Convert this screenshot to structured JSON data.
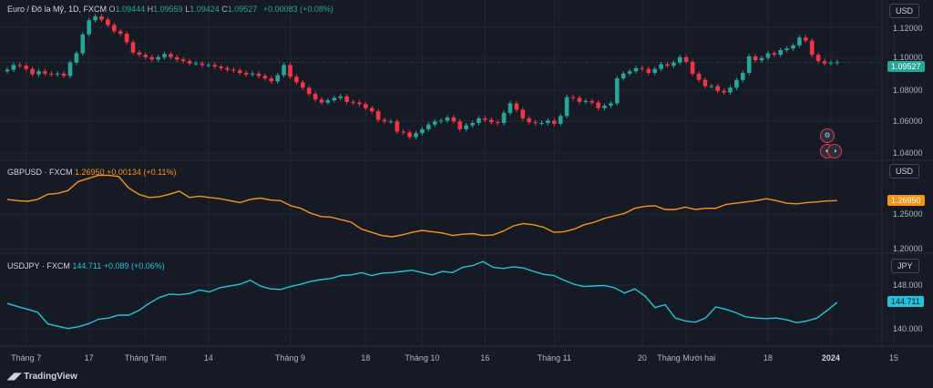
{
  "main_legend": {
    "symbol": "Euro / Đô la Mỹ, 1D, FXCM",
    "o_label": "O",
    "o": "1.09444",
    "h_label": "H",
    "h": "1.09559",
    "l_label": "L",
    "l": "1.09424",
    "c_label": "C",
    "c": "1.09527",
    "change": "+0.00083 (+0.08%)"
  },
  "gbp_legend": {
    "symbol": "GBPUSD · FXCM",
    "value": "1.26950",
    "change": "+0.00134 (+0.11%)"
  },
  "jpy_legend": {
    "symbol": "USDJPY · FXCM",
    "value": "144.711",
    "change": "+0.089 (+0.06%)"
  },
  "currency_badges": {
    "main": "USD",
    "gbp": "USD",
    "jpy": "JPY"
  },
  "price_tags": {
    "main": "1.09527",
    "gbp": "1.26950",
    "jpy": "144.711"
  },
  "yaxis": {
    "main": [
      "1.12000",
      "1.10000",
      "1.08000",
      "1.06000",
      "1.04000"
    ],
    "gbp": [
      "1.25000",
      "1.20000"
    ],
    "jpy": [
      "148.000",
      "140.000"
    ]
  },
  "xaxis": [
    {
      "t": "Tháng 7",
      "i": 3,
      "bold": false
    },
    {
      "t": "17",
      "i": 13,
      "bold": false
    },
    {
      "t": "Tháng Tám",
      "i": 22,
      "bold": false
    },
    {
      "t": "14",
      "i": 32,
      "bold": false
    },
    {
      "t": "Tháng 9",
      "i": 45,
      "bold": false
    },
    {
      "t": "18",
      "i": 57,
      "bold": false
    },
    {
      "t": "Tháng 10",
      "i": 66,
      "bold": false
    },
    {
      "t": "16",
      "i": 76,
      "bold": false
    },
    {
      "t": "Tháng 11",
      "i": 87,
      "bold": false
    },
    {
      "t": "20",
      "i": 101,
      "bold": false
    },
    {
      "t": "Tháng Mười hai",
      "i": 108,
      "bold": false
    },
    {
      "t": "18",
      "i": 121,
      "bold": false
    },
    {
      "t": "2024",
      "i": 131,
      "bold": true
    },
    {
      "t": "15",
      "i": 141,
      "bold": false
    }
  ],
  "branding": {
    "logo_text": "TradingView"
  },
  "colors": {
    "up": "#26a69a",
    "down": "#f23645",
    "gbp_line": "#f7931a",
    "jpy_line": "#22c3dd",
    "bg": "#161a25",
    "grid": "#232732"
  },
  "chart_data": [
    {
      "type": "candlestick",
      "title": "Euro / Đô la Mỹ, 1D, FXCM",
      "ylim": [
        1.035,
        1.128
      ],
      "close": [
        1.0905,
        1.0935,
        1.093,
        1.091,
        1.0875,
        1.0895,
        1.088,
        1.0875,
        1.088,
        1.0865,
        1.095,
        1.101,
        1.113,
        1.122,
        1.1245,
        1.1225,
        1.119,
        1.115,
        1.1135,
        1.108,
        1.1015,
        1.1,
        1.0985,
        1.097,
        1.0985,
        1.1005,
        1.0985,
        1.097,
        1.096,
        1.0945,
        1.0945,
        1.0935,
        1.0935,
        1.0925,
        1.0915,
        1.0905,
        1.09,
        1.0885,
        1.0875,
        1.088,
        1.0865,
        1.085,
        1.083,
        1.087,
        1.0935,
        1.086,
        1.0825,
        1.079,
        1.075,
        1.0715,
        1.0695,
        1.071,
        1.0725,
        1.0735,
        1.07,
        1.0695,
        1.0685,
        1.066,
        1.064,
        1.0585,
        1.0575,
        1.0575,
        1.051,
        1.0505,
        1.0475,
        1.05,
        1.0525,
        1.0555,
        1.0575,
        1.058,
        1.06,
        1.0575,
        1.0525,
        1.055,
        1.0565,
        1.0595,
        1.0585,
        1.057,
        1.0565,
        1.063,
        1.069,
        1.065,
        1.0595,
        1.057,
        1.0565,
        1.0565,
        1.058,
        1.056,
        1.061,
        1.073,
        1.0725,
        1.07,
        1.0705,
        1.0695,
        1.066,
        1.0675,
        1.069,
        1.085,
        1.088,
        1.0895,
        1.0915,
        1.091,
        1.0885,
        1.091,
        1.094,
        1.093,
        1.095,
        1.0985,
        1.0955,
        1.088,
        1.084,
        1.08,
        1.08,
        1.077,
        1.076,
        1.079,
        1.084,
        1.0885,
        1.099,
        1.0965,
        1.098,
        1.101,
        1.1,
        1.103,
        1.104,
        1.106,
        1.111,
        1.109,
        1.1,
        1.096,
        1.0945,
        1.095,
        1.0953
      ],
      "series": [
        {
          "name": "GBPUSD · FXCM",
          "type": "line",
          "ylim": [
            1.19,
            1.325
          ],
          "values": [
            1.272,
            1.27,
            1.269,
            1.272,
            1.28,
            1.2815,
            1.286,
            1.3,
            1.305,
            1.31,
            1.31,
            1.308,
            1.29,
            1.28,
            1.275,
            1.276,
            1.28,
            1.285,
            1.275,
            1.277,
            1.275,
            1.273,
            1.27,
            1.267,
            1.272,
            1.274,
            1.271,
            1.27,
            1.262,
            1.258,
            1.25,
            1.245,
            1.244,
            1.24,
            1.236,
            1.225,
            1.22,
            1.215,
            1.213,
            1.216,
            1.22,
            1.223,
            1.221,
            1.219,
            1.215,
            1.217,
            1.218,
            1.215,
            1.216,
            1.222,
            1.23,
            1.234,
            1.232,
            1.228,
            1.22,
            1.221,
            1.225,
            1.232,
            1.236,
            1.242,
            1.246,
            1.25,
            1.258,
            1.261,
            1.262,
            1.256,
            1.256,
            1.26,
            1.256,
            1.258,
            1.258,
            1.264,
            1.266,
            1.268,
            1.27,
            1.273,
            1.27,
            1.266,
            1.265,
            1.267,
            1.268,
            1.2695,
            1.27
          ]
        },
        {
          "name": "USDJPY · FXCM",
          "type": "line",
          "ylim": [
            137.5,
            152.5
          ],
          "values": [
            144.5,
            144.0,
            143.5,
            143.0,
            141.0,
            140.6,
            140.2,
            140.5,
            141.0,
            141.8,
            142.0,
            142.5,
            142.5,
            143.3,
            144.5,
            145.5,
            146.1,
            146.0,
            146.2,
            146.8,
            146.5,
            147.2,
            147.5,
            147.8,
            148.5,
            147.5,
            147.0,
            146.9,
            147.4,
            147.8,
            148.3,
            148.6,
            148.8,
            149.3,
            149.4,
            149.8,
            149.3,
            149.7,
            149.8,
            150.0,
            150.2,
            149.8,
            149.4,
            150.0,
            149.8,
            150.7,
            151.0,
            151.7,
            150.7,
            150.5,
            150.8,
            150.6,
            150.0,
            149.5,
            149.3,
            148.5,
            147.8,
            147.4,
            147.5,
            147.6,
            147.2,
            146.3,
            147.0,
            145.8,
            143.8,
            144.3,
            142.0,
            141.5,
            141.3,
            142.0,
            143.9,
            143.5,
            142.9,
            142.2,
            142.0,
            141.9,
            142.0,
            141.7,
            141.2,
            141.5,
            142.0,
            143.3,
            144.7
          ]
        }
      ]
    }
  ]
}
